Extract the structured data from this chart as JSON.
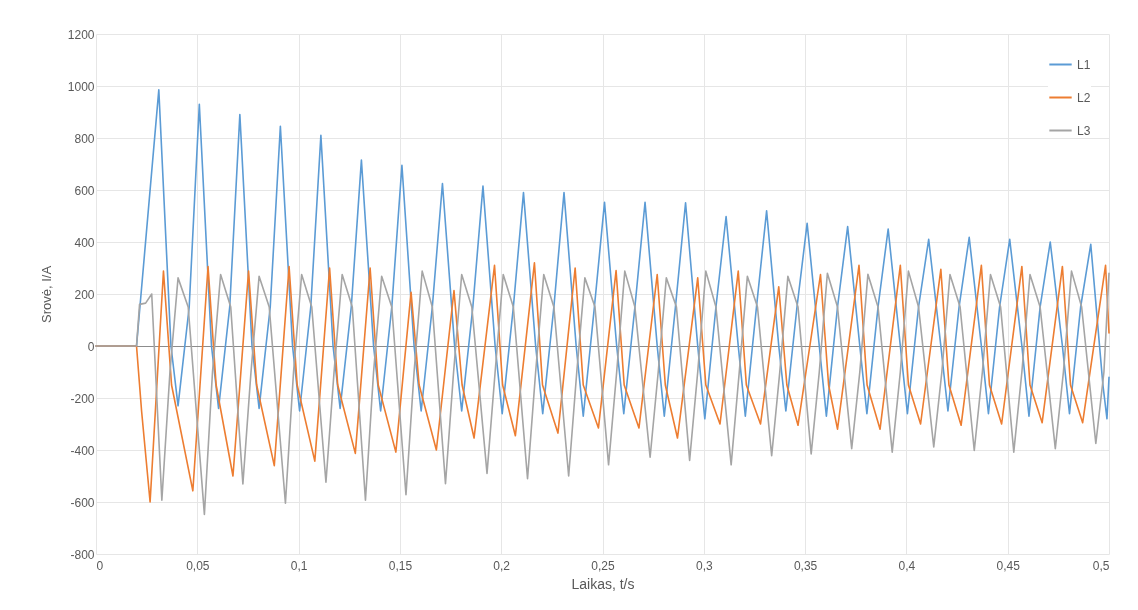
{
  "chart_data": {
    "type": "line",
    "xlabel": "Laikas,  t/s",
    "ylabel": "Srovė, I/A",
    "xlim": [
      0,
      0.5
    ],
    "xticks": [
      0,
      {
        "value": 0.05,
        "label": "0,05"
      },
      {
        "value": 0.1,
        "label": "0,1"
      },
      {
        "value": 0.15,
        "label": "0,15"
      },
      {
        "value": 0.2,
        "label": "0,2"
      },
      {
        "value": 0.25,
        "label": "0,25"
      },
      {
        "value": 0.3,
        "label": "0,3"
      },
      {
        "value": 0.35,
        "label": "0,35"
      },
      {
        "value": 0.4,
        "label": "0,4"
      },
      {
        "value": 0.45,
        "label": "0,45"
      },
      {
        "value": 0.5,
        "label": "0,5"
      }
    ],
    "ylim": [
      -800,
      1200
    ],
    "yticks": [
      -800,
      -600,
      -400,
      -200,
      0,
      200,
      400,
      600,
      800,
      1000,
      1200
    ],
    "grid": true,
    "legend": "top right",
    "series": [
      {
        "name": "L1",
        "color": "#5b9bd5",
        "x": [
          0,
          0.02,
          0.031,
          0.037,
          0.0405,
          0.046,
          0.051,
          0.057,
          0.0605,
          0.066,
          0.071,
          0.077,
          0.0805,
          0.086,
          0.091,
          0.097,
          0.1005,
          0.106,
          0.111,
          0.117,
          0.1205,
          0.126,
          0.131,
          0.137,
          0.1405,
          0.146,
          0.151,
          0.157,
          0.1605,
          0.166,
          0.171,
          0.177,
          0.1805,
          0.186,
          0.191,
          0.197,
          0.2005,
          0.206,
          0.211,
          0.217,
          0.2205,
          0.226,
          0.231,
          0.237,
          0.2405,
          0.246,
          0.251,
          0.257,
          0.2605,
          0.266,
          0.271,
          0.277,
          0.2805,
          0.286,
          0.291,
          0.297,
          0.3005,
          0.306,
          0.311,
          0.317,
          0.3205,
          0.326,
          0.331,
          0.337,
          0.3405,
          0.346,
          0.351,
          0.357,
          0.3605,
          0.366,
          0.371,
          0.377,
          0.3805,
          0.386,
          0.391,
          0.397,
          0.4005,
          0.406,
          0.411,
          0.417,
          0.4205,
          0.426,
          0.431,
          0.437,
          0.4405,
          0.446,
          0.451,
          0.457,
          0.4605,
          0.466,
          0.471,
          0.477,
          0.4805,
          0.486,
          0.491,
          0.497,
          0.499,
          0.5
        ],
        "values": [
          0,
          0,
          985,
          0,
          -230,
          150,
          930,
          0,
          -240,
          150,
          890,
          0,
          -240,
          150,
          845,
          0,
          -250,
          150,
          810,
          0,
          -240,
          150,
          715,
          0,
          -250,
          150,
          695,
          0,
          -250,
          150,
          625,
          0,
          -250,
          150,
          615,
          0,
          -260,
          150,
          590,
          0,
          -260,
          150,
          590,
          0,
          -270,
          150,
          553,
          0,
          -260,
          150,
          553,
          0,
          -270,
          150,
          551,
          0,
          -280,
          150,
          498,
          0,
          -270,
          150,
          520,
          0,
          -250,
          150,
          472,
          0,
          -270,
          150,
          459,
          0,
          -260,
          150,
          450,
          0,
          -260,
          150,
          410,
          0,
          -250,
          150,
          418,
          0,
          -260,
          150,
          410,
          0,
          -270,
          150,
          400,
          0,
          -260,
          150,
          391,
          -150,
          -280,
          -120
        ]
      },
      {
        "name": "L2",
        "color": "#ed7d31",
        "x": [
          0,
          0.02,
          0.0225,
          0.0267,
          0.0333,
          0.0373,
          0.0478,
          0.0553,
          0.0593,
          0.0676,
          0.0753,
          0.0793,
          0.088,
          0.0953,
          0.0993,
          0.108,
          0.1153,
          0.1193,
          0.128,
          0.1353,
          0.1393,
          0.148,
          0.1555,
          0.1595,
          0.168,
          0.1767,
          0.1807,
          0.1866,
          0.1967,
          0.2007,
          0.207,
          0.2164,
          0.2204,
          0.228,
          0.2365,
          0.2405,
          0.248,
          0.2567,
          0.2607,
          0.268,
          0.277,
          0.281,
          0.287,
          0.297,
          0.301,
          0.308,
          0.317,
          0.321,
          0.328,
          0.337,
          0.341,
          0.3465,
          0.3576,
          0.3616,
          0.366,
          0.3766,
          0.3806,
          0.387,
          0.397,
          0.401,
          0.407,
          0.417,
          0.421,
          0.427,
          0.437,
          0.441,
          0.447,
          0.457,
          0.461,
          0.467,
          0.477,
          0.481,
          0.487,
          0.4983,
          0.5
        ],
        "values": [
          0,
          0,
          -250,
          -600,
          288,
          -150,
          -557,
          306,
          -150,
          -500,
          288,
          -150,
          -460,
          306,
          -150,
          -443,
          300,
          -150,
          -413,
          300,
          -150,
          -408,
          207,
          -150,
          -400,
          213,
          -150,
          -354,
          310,
          -150,
          -345,
          320,
          -150,
          -335,
          300,
          -150,
          -315,
          290,
          -150,
          -315,
          275,
          -150,
          -354,
          262,
          -150,
          -300,
          288,
          -150,
          -300,
          228,
          -150,
          -305,
          275,
          -150,
          -320,
          310,
          -150,
          -320,
          310,
          -150,
          -300,
          295,
          -150,
          -305,
          310,
          -150,
          -300,
          306,
          -150,
          -295,
          306,
          -150,
          -295,
          310,
          50
        ]
      },
      {
        "name": "L3",
        "color": "#a5a5a5",
        "x": [
          0,
          0.02,
          0.0215,
          0.0245,
          0.0275,
          0.0325,
          0.0365,
          0.0405,
          0.0455,
          0.0535,
          0.0575,
          0.0615,
          0.0665,
          0.0725,
          0.0765,
          0.0805,
          0.0855,
          0.0935,
          0.0975,
          0.1015,
          0.1065,
          0.1135,
          0.1175,
          0.1215,
          0.1265,
          0.133,
          0.137,
          0.141,
          0.146,
          0.153,
          0.157,
          0.161,
          0.166,
          0.1725,
          0.1765,
          0.1805,
          0.1855,
          0.193,
          0.197,
          0.201,
          0.206,
          0.213,
          0.217,
          0.221,
          0.226,
          0.2333,
          0.2373,
          0.2413,
          0.2463,
          0.253,
          0.257,
          0.261,
          0.266,
          0.2735,
          0.2775,
          0.2815,
          0.2865,
          0.293,
          0.297,
          0.301,
          0.306,
          0.3135,
          0.3175,
          0.3215,
          0.3265,
          0.3335,
          0.3375,
          0.3415,
          0.3465,
          0.353,
          0.357,
          0.361,
          0.366,
          0.373,
          0.377,
          0.381,
          0.386,
          0.393,
          0.397,
          0.401,
          0.406,
          0.4135,
          0.4175,
          0.4215,
          0.4265,
          0.4335,
          0.4375,
          0.4415,
          0.4465,
          0.453,
          0.457,
          0.461,
          0.466,
          0.4735,
          0.4775,
          0.4815,
          0.4865,
          0.4935,
          0.4975,
          0.5
        ],
        "values": [
          0,
          0,
          160,
          165,
          200,
          -593,
          -100,
          262,
          150,
          -648,
          -100,
          275,
          150,
          -531,
          -100,
          268,
          150,
          -605,
          -100,
          275,
          150,
          -524,
          -100,
          275,
          150,
          -593,
          -100,
          268,
          150,
          -572,
          -100,
          288,
          150,
          -530,
          -100,
          275,
          150,
          -490,
          -100,
          275,
          150,
          -510,
          -100,
          275,
          150,
          -500,
          -100,
          262,
          150,
          -457,
          -100,
          288,
          150,
          -428,
          -100,
          262,
          150,
          -440,
          -100,
          288,
          150,
          -457,
          -100,
          268,
          150,
          -422,
          -100,
          268,
          150,
          -415,
          -100,
          280,
          150,
          -395,
          -100,
          276,
          150,
          -408,
          -100,
          288,
          150,
          -388,
          -100,
          275,
          150,
          -402,
          -100,
          275,
          150,
          -408,
          -100,
          275,
          150,
          -395,
          -100,
          288,
          150,
          -375,
          -100,
          280
        ]
      }
    ]
  }
}
